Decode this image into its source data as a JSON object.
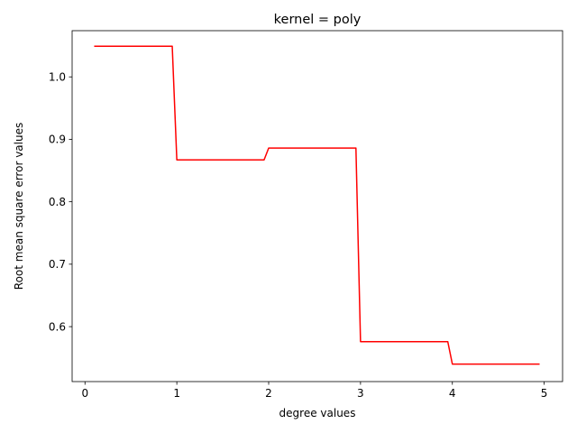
{
  "chart_data": {
    "type": "line",
    "title": "kernel = poly",
    "xlabel": "degree values",
    "ylabel": "Root mean square error values",
    "xlim": [
      -0.14,
      5.2
    ],
    "ylim": [
      0.512,
      1.074
    ],
    "xticks": [
      0,
      1,
      2,
      3,
      4,
      5
    ],
    "xtick_labels": [
      "0",
      "1",
      "2",
      "3",
      "4",
      "5"
    ],
    "yticks": [
      0.6,
      0.7,
      0.8,
      0.9,
      1.0
    ],
    "ytick_labels": [
      "0.6",
      "0.7",
      "0.8",
      "0.9",
      "1.0"
    ],
    "grid": false,
    "legend": "none",
    "series": [
      {
        "color": "#ff0000",
        "x": [
          0.1,
          0.95,
          1.0,
          1.95,
          2.0,
          2.95,
          3.0,
          3.95,
          4.0,
          4.95
        ],
        "y": [
          1.049,
          1.049,
          0.867,
          0.867,
          0.886,
          0.886,
          0.576,
          0.576,
          0.54,
          0.54
        ]
      }
    ]
  }
}
